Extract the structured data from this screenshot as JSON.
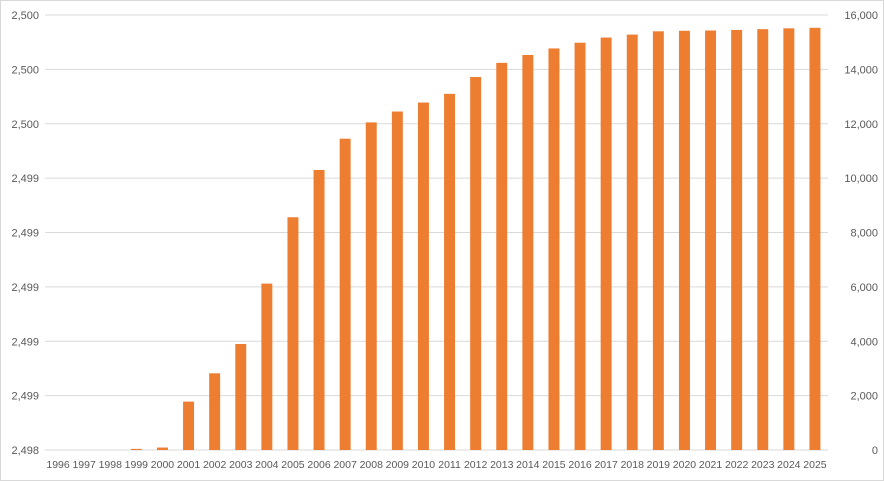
{
  "chart_data": {
    "type": "bar",
    "categories": [
      "1996",
      "1997",
      "1998",
      "1999",
      "2000",
      "2001",
      "2002",
      "2003",
      "2004",
      "2005",
      "2006",
      "2007",
      "2008",
      "2009",
      "2010",
      "2011",
      "2012",
      "2013",
      "2014",
      "2015",
      "2016",
      "2017",
      "2018",
      "2019",
      "2020",
      "2021",
      "2022",
      "2023",
      "2024",
      "2025"
    ],
    "series": [
      {
        "values": [
          0,
          0,
          0,
          40,
          90,
          1780,
          2820,
          3900,
          6120,
          8560,
          10300,
          11450,
          12050,
          12450,
          12780,
          13100,
          13720,
          14240,
          14530,
          14770,
          14980,
          15170,
          15280,
          15400,
          15420,
          15430,
          15450,
          15480,
          15510,
          15530
        ],
        "color": "#ED7D31",
        "axis": "right"
      }
    ],
    "y_left": {
      "ticks": [
        "2,500",
        "2,500",
        "2,500",
        "2,499",
        "2,499",
        "2,499",
        "2,499",
        "2,499",
        "2,498"
      ]
    },
    "y_right": {
      "ticks": [
        "16,000",
        "14,000",
        "12,000",
        "10,000",
        "8,000",
        "6,000",
        "4,000",
        "2,000",
        "0"
      ],
      "range": [
        0,
        16000
      ]
    },
    "gridlines": true,
    "gridline_color": "#d9d9d9",
    "legend": "none"
  }
}
